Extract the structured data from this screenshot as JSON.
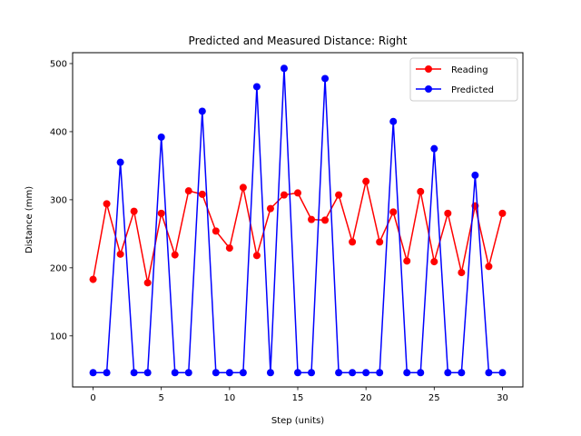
{
  "chart_data": {
    "type": "line",
    "title": "Predicted and Measured Distance: Right",
    "xlabel": "Step (units)",
    "ylabel": "Distance (mm)",
    "xlim": [
      -1.5,
      31.5
    ],
    "ylim": [
      25,
      516
    ],
    "xticks": [
      0,
      5,
      10,
      15,
      20,
      25,
      30
    ],
    "yticks": [
      100,
      200,
      300,
      400,
      500
    ],
    "grid": false,
    "legend_position": "top-right",
    "x": [
      0,
      1,
      2,
      3,
      4,
      5,
      6,
      7,
      8,
      9,
      10,
      11,
      12,
      13,
      14,
      15,
      16,
      17,
      18,
      19,
      20,
      21,
      22,
      23,
      24,
      25,
      26,
      27,
      28,
      29,
      30
    ],
    "series": [
      {
        "name": "Reading",
        "color": "#ff0000",
        "marker": "circle",
        "values": [
          183,
          294,
          220,
          283,
          178,
          280,
          219,
          313,
          308,
          254,
          229,
          318,
          218,
          287,
          307,
          310,
          271,
          270,
          307,
          238,
          327,
          238,
          282,
          210,
          312,
          209,
          280,
          193,
          291,
          202,
          280
        ]
      },
      {
        "name": "Predicted",
        "color": "#0000ff",
        "marker": "circle",
        "values": [
          46,
          46,
          355,
          46,
          46,
          392,
          46,
          46,
          430,
          46,
          46,
          46,
          466,
          46,
          493,
          46,
          46,
          478,
          46,
          46,
          46,
          46,
          415,
          46,
          46,
          375,
          46,
          46,
          336,
          46,
          46
        ]
      }
    ]
  }
}
